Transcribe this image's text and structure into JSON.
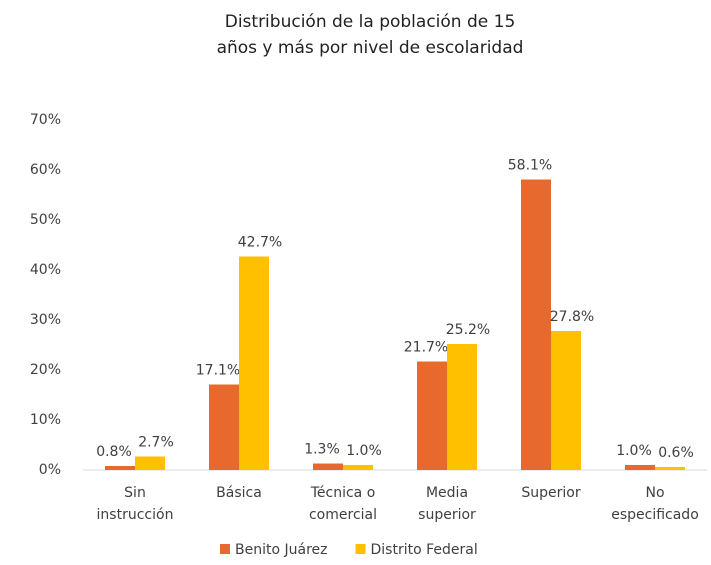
{
  "chart_data": {
    "type": "bar",
    "title": [
      "Distribución de la población de 15",
      "años y más por nivel de escolaridad"
    ],
    "categories": [
      "Sin instrucción",
      "Básica",
      "Técnica o comercial",
      "Media superior",
      "Superior",
      "No especificado"
    ],
    "series": [
      {
        "name": "Benito Juárez",
        "color": "#e8692e",
        "values": [
          0.8,
          17.1,
          1.3,
          21.7,
          58.1,
          1.0
        ],
        "value_labels": [
          "0.8%",
          "17.1%",
          "1.3%",
          "21.7%",
          "58.1%",
          "1.0%"
        ]
      },
      {
        "name": "Distrito Federal",
        "color": "#ffc000",
        "values": [
          2.7,
          42.7,
          1.0,
          25.2,
          27.8,
          0.6
        ],
        "value_labels": [
          "2.7%",
          "42.7%",
          "1.0%",
          "25.2%",
          "27.8%",
          "0.6%"
        ]
      }
    ],
    "ylim": [
      0,
      70
    ],
    "yticks": [
      {
        "value": 0,
        "label": "0%"
      },
      {
        "value": 10,
        "label": "10%"
      },
      {
        "value": 20,
        "label": "20%"
      },
      {
        "value": 30,
        "label": "30%"
      },
      {
        "value": 40,
        "label": "40%"
      },
      {
        "value": 50,
        "label": "50%"
      },
      {
        "value": 60,
        "label": "60%"
      },
      {
        "value": 70,
        "label": "70%"
      }
    ],
    "legend": "bottom"
  }
}
